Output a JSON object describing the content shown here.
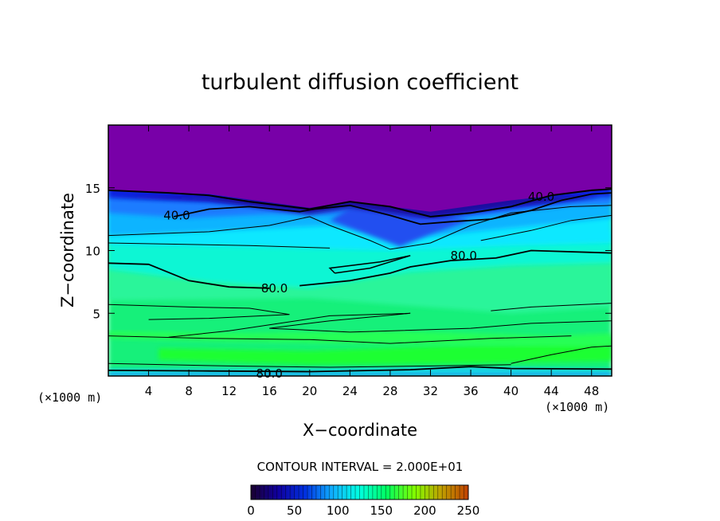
{
  "chart_data": {
    "type": "heatmap",
    "title": "turbulent diffusion coefficient",
    "xlabel": "X−coordinate",
    "ylabel": "Z−coordinate",
    "x_unit_label_left": "(×1000 m)",
    "x_unit_label_right": "(×1000 m)",
    "xlim": [
      0,
      50
    ],
    "ylim": [
      0,
      20
    ],
    "x_ticks": [
      4,
      8,
      12,
      16,
      20,
      24,
      28,
      32,
      36,
      40,
      44,
      48
    ],
    "y_ticks": [
      5,
      10,
      15
    ],
    "contour_interval_text": "CONTOUR INTERVAL = 2.000E+01",
    "contour_interval": 20,
    "colorbar": {
      "min": 0,
      "max": 250,
      "ticks": [
        0,
        50,
        100,
        150,
        200,
        250
      ],
      "colormap": [
        "#1a0030",
        "#1000a0",
        "#0030e0",
        "#10b0ff",
        "#00ffe0",
        "#00ff60",
        "#80ff00",
        "#c0a000",
        "#c04000"
      ]
    },
    "contour_labels": [
      {
        "text": "40.0",
        "x": 6.8,
        "y": 12.8
      },
      {
        "text": "40.0",
        "x": 43.0,
        "y": 14.3
      },
      {
        "text": "80.0",
        "x": 16.5,
        "y": 7.0
      },
      {
        "text": "80.0",
        "x": 35.3,
        "y": 9.6
      },
      {
        "text": "80.0",
        "x": 16.0,
        "y": 0.2
      }
    ],
    "regions": {
      "upper_layer_value": 0,
      "upper_layer_boundary_z": [
        [
          0,
          14.8
        ],
        [
          10,
          14.5
        ],
        [
          20,
          13.4
        ],
        [
          24,
          13.9
        ],
        [
          32,
          13.1
        ],
        [
          40,
          14.0
        ],
        [
          50,
          14.9
        ]
      ],
      "description_levels": [
        0,
        40,
        80,
        100,
        120
      ]
    }
  }
}
